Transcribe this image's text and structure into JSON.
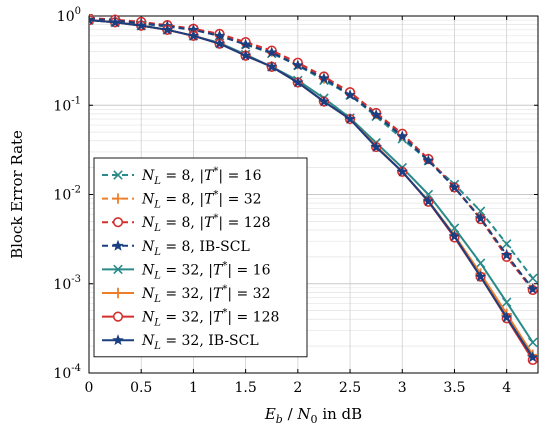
{
  "chart_data": {
    "type": "line",
    "xlabel": "E_b / N_0 in dB",
    "ylabel": "Block Error Rate",
    "x_scale": "linear",
    "y_scale": "log",
    "xlim": [
      0,
      4.3
    ],
    "ylim": [
      0.0001,
      1
    ],
    "x_ticks": [
      "0",
      "0.5",
      "1",
      "1.5",
      "2",
      "2.5",
      "3",
      "3.5",
      "4"
    ],
    "y_ticks": [
      "10^-4",
      "10^-3",
      "10^-2",
      "10^-1",
      "10^0"
    ],
    "grid": true,
    "legend_position": "bottom-left",
    "x": [
      0,
      0.25,
      0.5,
      0.75,
      1,
      1.25,
      1.5,
      1.75,
      2,
      2.25,
      2.5,
      2.75,
      3,
      3.25,
      3.5,
      3.75,
      4,
      4.25
    ],
    "series": [
      {
        "name": "N_L = 8, |T*| = 16",
        "color": "#2a8a8a",
        "dash": true,
        "marker": "x",
        "values": [
          0.92,
          0.88,
          0.82,
          0.76,
          0.7,
          0.6,
          0.48,
          0.38,
          0.28,
          0.19,
          0.13,
          0.075,
          0.042,
          0.024,
          0.013,
          0.0065,
          0.0028,
          0.00115
        ]
      },
      {
        "name": "N_L = 8, |T*| = 32",
        "color": "#ee7d2a",
        "dash": true,
        "marker": "plus",
        "values": [
          0.94,
          0.9,
          0.84,
          0.78,
          0.71,
          0.62,
          0.5,
          0.4,
          0.29,
          0.2,
          0.14,
          0.08,
          0.047,
          0.025,
          0.012,
          0.0055,
          0.0021,
          0.00088
        ]
      },
      {
        "name": "N_L = 8, |T*| = 128",
        "color": "#d42f2f",
        "dash": true,
        "marker": "circle",
        "values": [
          0.95,
          0.91,
          0.86,
          0.79,
          0.72,
          0.63,
          0.51,
          0.41,
          0.3,
          0.21,
          0.14,
          0.082,
          0.048,
          0.025,
          0.012,
          0.0053,
          0.002,
          0.00085
        ]
      },
      {
        "name": "N_L = 8, IB-SCL",
        "color": "#1a3f80",
        "dash": true,
        "marker": "star",
        "values": [
          0.93,
          0.89,
          0.83,
          0.77,
          0.7,
          0.6,
          0.48,
          0.39,
          0.28,
          0.2,
          0.13,
          0.078,
          0.045,
          0.024,
          0.012,
          0.0054,
          0.0021,
          0.00087
        ]
      },
      {
        "name": "N_L = 32, |T*| = 16",
        "color": "#2a8a8a",
        "dash": false,
        "marker": "x",
        "values": [
          0.9,
          0.85,
          0.78,
          0.7,
          0.6,
          0.5,
          0.37,
          0.27,
          0.19,
          0.12,
          0.072,
          0.038,
          0.02,
          0.01,
          0.0042,
          0.0017,
          0.00062,
          0.00022
        ]
      },
      {
        "name": "N_L = 32, |T*| = 32",
        "color": "#ee7d2a",
        "dash": false,
        "marker": "plus",
        "values": [
          0.9,
          0.85,
          0.78,
          0.7,
          0.6,
          0.49,
          0.36,
          0.27,
          0.18,
          0.11,
          0.07,
          0.035,
          0.018,
          0.0085,
          0.0035,
          0.0013,
          0.00046,
          0.00016
        ]
      },
      {
        "name": "N_L = 32, |T*| = 128",
        "color": "#d42f2f",
        "dash": false,
        "marker": "circle",
        "values": [
          0.9,
          0.85,
          0.78,
          0.7,
          0.6,
          0.49,
          0.36,
          0.27,
          0.18,
          0.11,
          0.07,
          0.034,
          0.018,
          0.0083,
          0.0033,
          0.0012,
          0.00041,
          0.00014
        ]
      },
      {
        "name": "N_L = 32, IB-SCL",
        "color": "#1a3f80",
        "dash": false,
        "marker": "star",
        "values": [
          0.9,
          0.85,
          0.78,
          0.7,
          0.6,
          0.49,
          0.36,
          0.27,
          0.18,
          0.11,
          0.07,
          0.034,
          0.018,
          0.0084,
          0.0034,
          0.0012,
          0.00042,
          0.00015
        ]
      }
    ]
  }
}
